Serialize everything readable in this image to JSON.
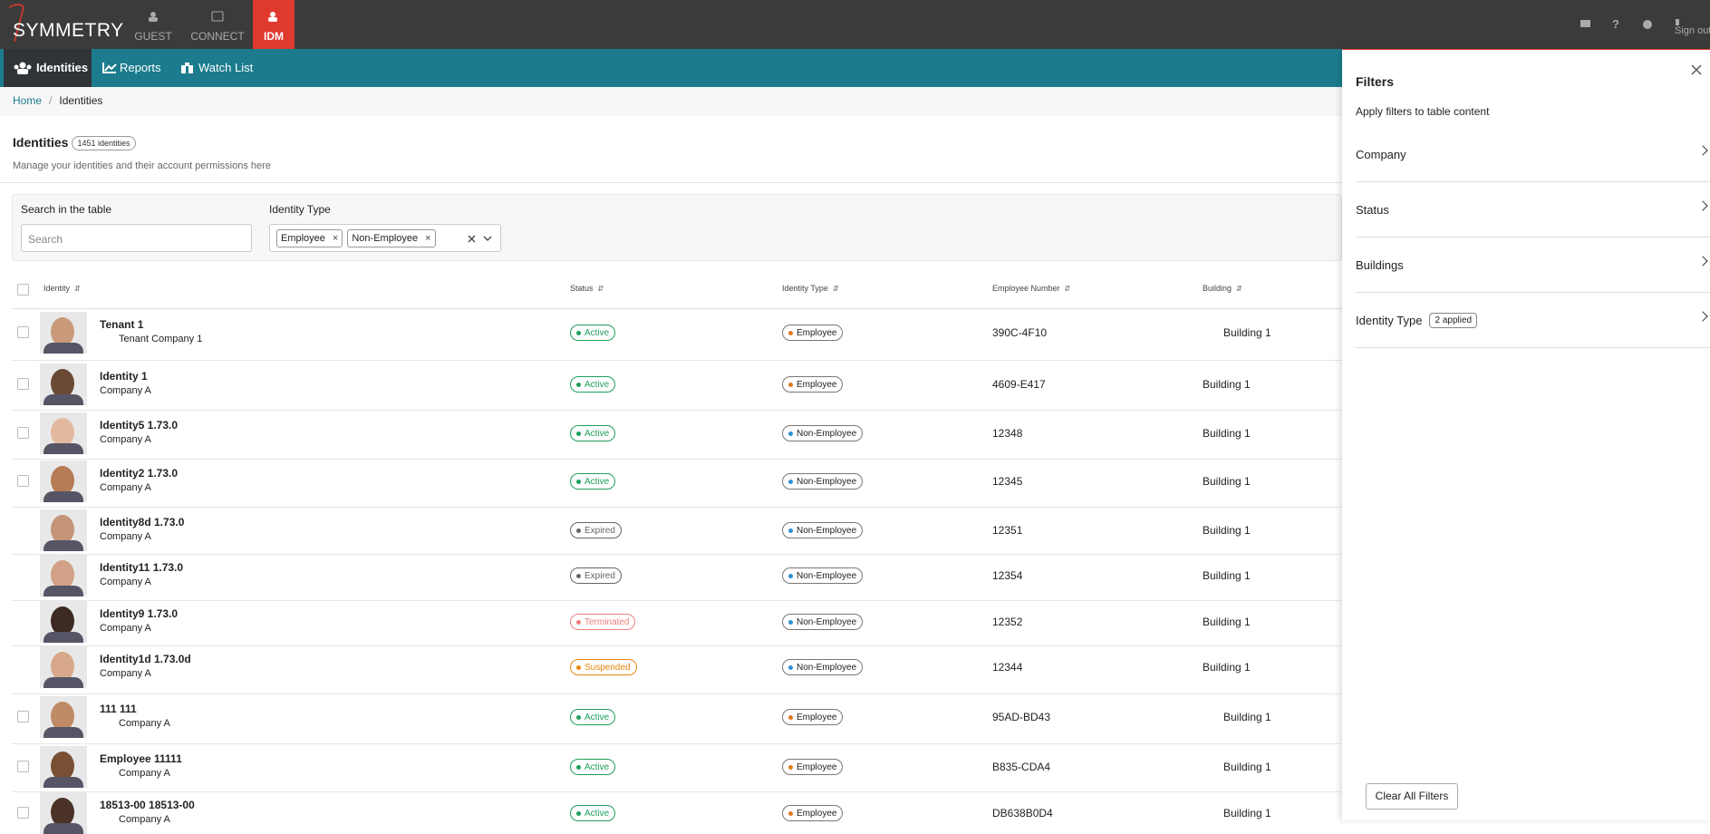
{
  "header": {
    "logo": "SYMMETRY",
    "apps": [
      "GUEST",
      "CONNECT",
      "IDM"
    ],
    "sign_out": "Sign out"
  },
  "subnav": [
    "Identities",
    "Reports",
    "Watch List"
  ],
  "breadcrumb": [
    "Home",
    "Identities"
  ],
  "page": {
    "title": "Identities",
    "count_badge": "1451 identities",
    "subtitle": "Manage your identities and their account permissions here"
  },
  "filters_bar": {
    "search_label": "Search in the table",
    "search_placeholder": "Search",
    "type_label": "Identity Type",
    "chips": [
      "Employee",
      "Non-Employee"
    ]
  },
  "table": {
    "columns": [
      "Identity",
      "Status",
      "Identity Type",
      "Employee Number",
      "Building"
    ],
    "rows": [
      {
        "name": "Tenant 1",
        "company": "Tenant Company 1",
        "status": "Active",
        "status_color": "#1e9e5a",
        "type": "Employee",
        "type_color": "#e07b1a",
        "number": "390C-4F10",
        "building": "Building 1",
        "checkbox": true
      },
      {
        "name": "Identity 1",
        "company": "Company A",
        "status": "Active",
        "status_color": "#1e9e5a",
        "type": "Employee",
        "type_color": "#e07b1a",
        "number": "4609-E417",
        "building": "Building 1",
        "checkbox": true
      },
      {
        "name": "Identity5 1.73.0",
        "company": "Company A",
        "status": "Active",
        "status_color": "#1e9e5a",
        "type": "Non-Employee",
        "type_color": "#2f8fd6",
        "number": "12348",
        "building": "Building 1",
        "checkbox": true
      },
      {
        "name": "Identity2 1.73.0",
        "company": "Company A",
        "status": "Active",
        "status_color": "#1e9e5a",
        "type": "Non-Employee",
        "type_color": "#2f8fd6",
        "number": "12345",
        "building": "Building 1",
        "checkbox": true
      },
      {
        "name": "Identity8d 1.73.0",
        "company": "Company A",
        "status": "Expired",
        "status_color": "#666666",
        "type": "Non-Employee",
        "type_color": "#2f8fd6",
        "number": "12351",
        "building": "Building 1",
        "checkbox": false
      },
      {
        "name": "Identity11 1.73.0",
        "company": "Company A",
        "status": "Expired",
        "status_color": "#666666",
        "type": "Non-Employee",
        "type_color": "#2f8fd6",
        "number": "12354",
        "building": "Building 1",
        "checkbox": false
      },
      {
        "name": "Identity9 1.73.0",
        "company": "Company A",
        "status": "Terminated",
        "status_color": "#ef7d7d",
        "type": "Non-Employee",
        "type_color": "#2f8fd6",
        "number": "12352",
        "building": "Building 1",
        "checkbox": false
      },
      {
        "name": "Identity1d 1.73.0d",
        "company": "Company A",
        "status": "Suspended",
        "status_color": "#e8850c",
        "type": "Non-Employee",
        "type_color": "#2f8fd6",
        "number": "12344",
        "building": "Building 1",
        "checkbox": false
      },
      {
        "name": "111 111",
        "company": "Company A",
        "status": "Active",
        "status_color": "#1e9e5a",
        "type": "Employee",
        "type_color": "#e07b1a",
        "number": "95AD-BD43",
        "building": "Building 1",
        "checkbox": true
      },
      {
        "name": "Employee 11111",
        "company": "Company A",
        "status": "Active",
        "status_color": "#1e9e5a",
        "type": "Employee",
        "type_color": "#e07b1a",
        "number": "B835-CDA4",
        "building": "Building 1",
        "checkbox": true
      },
      {
        "name": "18513-00 18513-00",
        "company": "Company A",
        "status": "Active",
        "status_color": "#1e9e5a",
        "type": "Employee",
        "type_color": "#e07b1a",
        "number": "DB638B0D4",
        "building": "Building 1",
        "checkbox": true
      }
    ]
  },
  "filter_panel": {
    "title": "Filters",
    "subtitle": "Apply filters to table content",
    "sections": [
      {
        "label": "Company"
      },
      {
        "label": "Status"
      },
      {
        "label": "Buildings"
      },
      {
        "label": "Identity Type",
        "badge": "2 applied"
      }
    ],
    "clear_button": "Clear All Filters"
  }
}
